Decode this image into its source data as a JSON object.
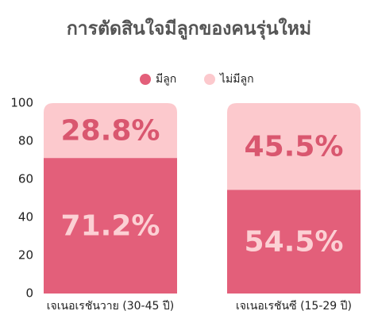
{
  "chart_data": {
    "type": "stacked_bar",
    "title": "การตัดสินใจมีลูกของคนรุ่นใหม่",
    "categories": [
      "เจเนอเรชันวาย (30-45 ปี)",
      "เจเนอเรชันซี (15-29 ปี)"
    ],
    "series": [
      {
        "name": "มีลูก",
        "color": "#e35f7a",
        "values": [
          71.2,
          54.5
        ],
        "value_labels": [
          "71.2%",
          "54.5%"
        ],
        "label_color": "#fcd0d4"
      },
      {
        "name": "ไม่มีลูก",
        "color": "#fcc9cd",
        "values": [
          28.8,
          45.5
        ],
        "value_labels": [
          "28.8%",
          "45.5%"
        ],
        "label_color": "#d9576f"
      }
    ],
    "ylim": [
      0,
      100
    ],
    "yticks": [
      0,
      20,
      40,
      60,
      80,
      100
    ]
  }
}
